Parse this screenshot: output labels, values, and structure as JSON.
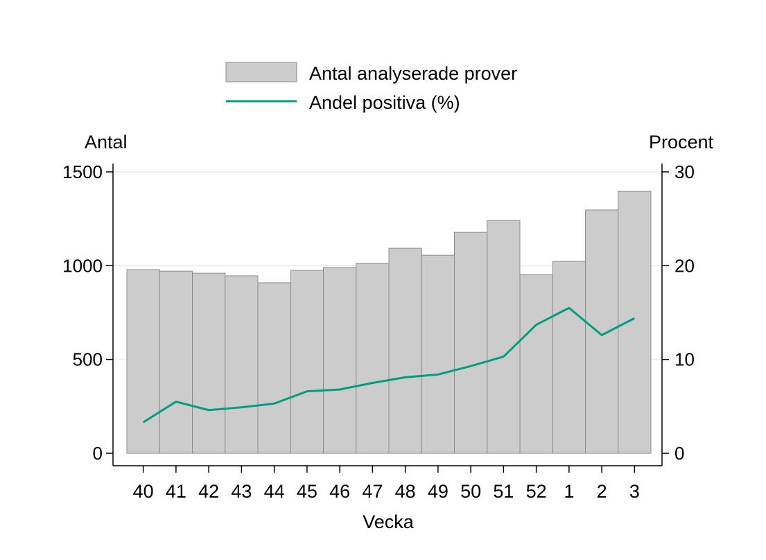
{
  "chart_data": {
    "type": "bar+line",
    "xlabel": "Vecka",
    "ylabel_left": "Antal",
    "ylabel_right": "Procent",
    "categories": [
      "40",
      "41",
      "42",
      "43",
      "44",
      "45",
      "46",
      "47",
      "48",
      "49",
      "50",
      "51",
      "52",
      "1",
      "2",
      "3"
    ],
    "ylim_left": [
      0,
      1500
    ],
    "yticks_left": [
      0,
      500,
      1000,
      1500
    ],
    "ylim_right": [
      0,
      30
    ],
    "yticks_right": [
      0,
      10,
      20,
      30
    ],
    "grid": true,
    "legend_position": "top-center",
    "series": [
      {
        "name": "Antal analyserade prover",
        "type": "bar",
        "axis": "left",
        "color": "#cccccc",
        "values": [
          979,
          971,
          960,
          946,
          909,
          975,
          990,
          1012,
          1093,
          1056,
          1178,
          1241,
          953,
          1023,
          1297,
          1396
        ]
      },
      {
        "name": "Andel positiva (%)",
        "type": "line",
        "axis": "right",
        "color": "#009e7e",
        "values": [
          3.3,
          5.5,
          4.6,
          4.9,
          5.3,
          6.6,
          6.8,
          7.5,
          8.1,
          8.4,
          9.3,
          10.3,
          13.7,
          15.5,
          12.6,
          14.4
        ]
      }
    ]
  }
}
